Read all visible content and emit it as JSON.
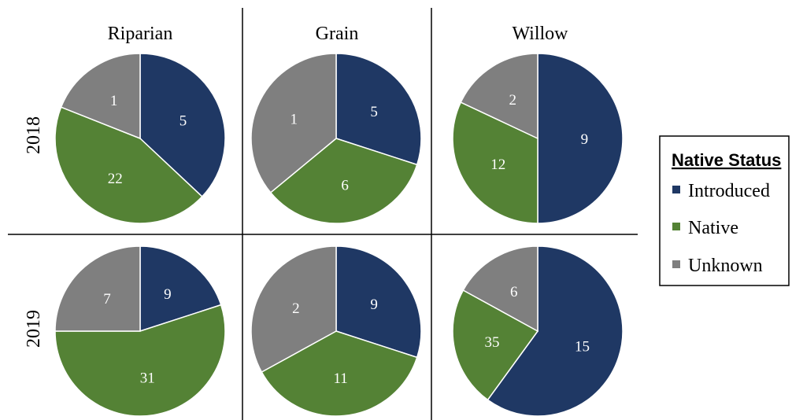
{
  "chart_data": {
    "type": "pie",
    "column_titles": [
      "Riparian",
      "Grain",
      "Willow"
    ],
    "row_titles": [
      "2018",
      "2019"
    ],
    "legend": {
      "title": "Native Status",
      "placement": "right",
      "entries": [
        {
          "name": "Introduced",
          "color": "#1f3864"
        },
        {
          "name": "Native",
          "color": "#548235"
        },
        {
          "name": "Unknown",
          "color": "#7f7f7f"
        }
      ]
    },
    "pies": [
      {
        "row": "2018",
        "column": "Riparian",
        "values": {
          "Introduced": 5,
          "Native": 22,
          "Unknown": 1
        }
      },
      {
        "row": "2018",
        "column": "Grain",
        "values": {
          "Introduced": 5,
          "Native": 6,
          "Unknown": 1
        }
      },
      {
        "row": "2018",
        "column": "Willow",
        "values": {
          "Introduced": 9,
          "Native": 12,
          "Unknown": 2
        }
      },
      {
        "row": "2019",
        "column": "Riparian",
        "values": {
          "Introduced": 9,
          "Native": 31,
          "Unknown": 7
        }
      },
      {
        "row": "2019",
        "column": "Grain",
        "values": {
          "Introduced": 9,
          "Native": 11,
          "Unknown": 2
        }
      },
      {
        "row": "2019",
        "column": "Willow",
        "values": {
          "Introduced": 15,
          "Native": 35,
          "Unknown": 6
        }
      }
    ],
    "slice_angle_fractions": [
      {
        "Introduced": 0.37,
        "Native": 0.44,
        "Unknown": 0.19
      },
      {
        "Introduced": 0.3,
        "Native": 0.34,
        "Unknown": 0.36
      },
      {
        "Introduced": 0.5,
        "Native": 0.32,
        "Unknown": 0.18
      },
      {
        "Introduced": 0.2,
        "Native": 0.55,
        "Unknown": 0.25
      },
      {
        "Introduced": 0.3,
        "Native": 0.37,
        "Unknown": 0.33
      },
      {
        "Introduced": 0.6,
        "Native": 0.23,
        "Unknown": 0.17
      }
    ]
  }
}
